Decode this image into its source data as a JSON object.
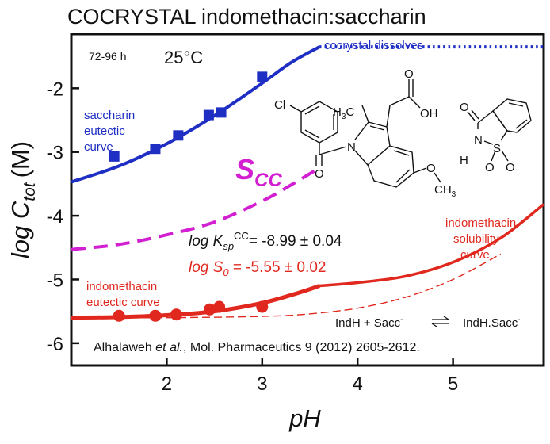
{
  "chart_data": {
    "type": "scatter",
    "title": "COCRYSTAL indomethacin:saccharin",
    "xlabel": "pH",
    "ylabel_main": "log C",
    "ylabel_sub": "tot",
    "ylabel_unit": "(M)",
    "xlim": [
      1.0,
      5.95
    ],
    "ylim": [
      -6.35,
      -1.15
    ],
    "xticks": [
      2,
      3,
      4,
      5
    ],
    "yticks": [
      -2,
      -3,
      -4,
      -5,
      -6
    ],
    "grid": false,
    "colors": {
      "saccharin": "#1f2fc4",
      "scc": "#d21fd2",
      "indomethacin": "#e0281e",
      "text": "#111111"
    },
    "series": [
      {
        "key": "saccharin_points",
        "style": "square-markers",
        "x": [
          1.45,
          1.88,
          2.12,
          2.44,
          2.57,
          3.0
        ],
        "y": [
          -3.07,
          -2.95,
          -2.74,
          -2.42,
          -2.38,
          -1.82
        ]
      },
      {
        "key": "saccharin_curve",
        "style": "solid",
        "x": [
          1.0,
          1.5,
          2.0,
          2.5,
          3.0,
          3.3,
          3.6
        ],
        "y": [
          -3.47,
          -3.22,
          -2.87,
          -2.43,
          -1.92,
          -1.6,
          -1.35
        ]
      },
      {
        "key": "cocrystal_dissolves",
        "style": "dotted",
        "x": [
          3.6,
          5.95
        ],
        "y": [
          -1.35,
          -1.35
        ]
      },
      {
        "key": "scc_curve",
        "style": "dashed",
        "x": [
          1.0,
          1.5,
          2.0,
          2.5,
          3.0,
          3.3,
          3.6
        ],
        "y": [
          -4.53,
          -4.45,
          -4.3,
          -4.1,
          -3.77,
          -3.52,
          -3.25
        ]
      },
      {
        "key": "indomethacin_points",
        "style": "circle-markers",
        "x": [
          1.5,
          1.88,
          2.1,
          2.45,
          2.55,
          3.0
        ],
        "y": [
          -5.57,
          -5.57,
          -5.55,
          -5.47,
          -5.43,
          -5.43
        ]
      },
      {
        "key": "indomethacin_eutectic",
        "style": "thick-solid",
        "x": [
          1.0,
          1.5,
          2.0,
          2.5,
          3.0,
          3.4,
          3.6
        ],
        "y": [
          -5.6,
          -5.59,
          -5.56,
          -5.5,
          -5.37,
          -5.2,
          -5.1
        ]
      },
      {
        "key": "indomethacin_solubility",
        "style": "solid",
        "x": [
          3.6,
          4.0,
          4.5,
          5.0,
          5.5,
          5.95
        ],
        "y": [
          -5.1,
          -5.05,
          -4.95,
          -4.73,
          -4.35,
          -3.82
        ]
      },
      {
        "key": "indomethacin_intrinsic",
        "style": "thin-dashed",
        "x": [
          1.0,
          2.0,
          3.0,
          3.5,
          4.0,
          4.5,
          5.0,
          5.5
        ],
        "y": [
          -5.6,
          -5.6,
          -5.58,
          -5.54,
          -5.45,
          -5.28,
          -5.0,
          -4.6
        ]
      }
    ],
    "annotations": {
      "time": "72-96 h",
      "temperature": "25°C",
      "cocrystal_dissolves": "cocrystal dissolves",
      "saccharin_label": [
        "saccharin",
        "eutectic",
        "curve"
      ],
      "scc_main": "S",
      "scc_sub": "CC",
      "ksp_log": "log K",
      "ksp_sub": "sp",
      "ksp_sup": "CC",
      "ksp_value": "= -8.99 ± 0.04",
      "s0_log": "log S",
      "s0_sub": "0",
      "s0_value": " = -5.55 ± 0.02",
      "indomethacin_solubility_label": [
        "indomethacin",
        "solubility",
        "curve"
      ],
      "indomethacin_eutectic_label": [
        "indomethacin",
        "eutectic curve"
      ],
      "equilibrium_left": "IndH + Sacc",
      "equilibrium_sup": "-",
      "equilibrium_right": "IndH.Sacc",
      "reference_pre": "Alhalaweh ",
      "reference_etal": "et al.",
      "reference_post": ", Mol. Pharmaceutics 9 (2012) 2605-2612."
    },
    "structure_labels": {
      "cl": "Cl",
      "h3c": "H",
      "h3c_sub": "3",
      "h3c_c": "C",
      "oh": "OH",
      "n1": "N",
      "o_carbonyl": "O",
      "o_methoxy": "O",
      "ch3_c": "CH",
      "ch3_sub": "3",
      "sac_o_top": "O",
      "sac_n": "N",
      "sac_h": "H",
      "sac_s": "S",
      "sac_o1": "O",
      "sac_o2": "O"
    }
  }
}
